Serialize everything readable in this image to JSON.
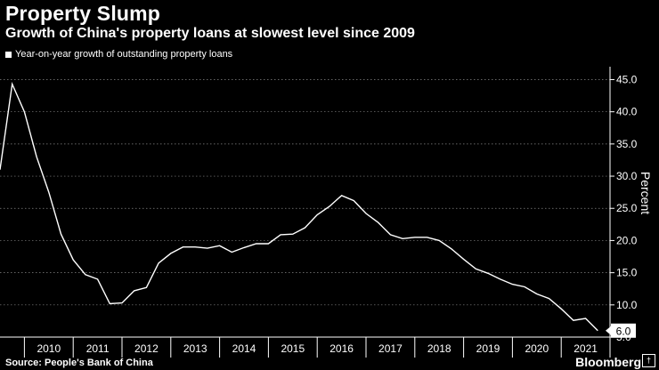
{
  "header": {
    "title": "Property Slump",
    "subtitle": "Growth of China's property loans at slowest level since 2009"
  },
  "footer": {
    "source": "Source: People's Bank of China",
    "brand": "Bloomberg",
    "brand_mark": "†"
  },
  "colors": {
    "background": "#000000",
    "line": "#ffffff",
    "grid": "#888888"
  },
  "chart_data": {
    "type": "line",
    "title": "Property Slump",
    "subtitle": "Growth of China's property loans at slowest level since 2009",
    "ylabel": "Percent",
    "ylim": [
      5.0,
      47.0
    ],
    "yticks": [
      5.0,
      10.0,
      15.0,
      20.0,
      25.0,
      30.0,
      35.0,
      40.0,
      45.0
    ],
    "xlim": [
      2009.5,
      2022.0
    ],
    "xticks": [
      "2010",
      "2011",
      "2012",
      "2013",
      "2014",
      "2015",
      "2016",
      "2017",
      "2018",
      "2019",
      "2020",
      "2021"
    ],
    "grid": true,
    "legend_position": "top-left",
    "last_value_label": "6.0",
    "series": [
      {
        "name": "Year-on-year growth of outstanding property loans",
        "x": [
          2009.5,
          2009.75,
          2010.0,
          2010.25,
          2010.5,
          2010.75,
          2011.0,
          2011.25,
          2011.5,
          2011.75,
          2012.0,
          2012.25,
          2012.5,
          2012.75,
          2013.0,
          2013.25,
          2013.5,
          2013.75,
          2014.0,
          2014.25,
          2014.5,
          2014.75,
          2015.0,
          2015.25,
          2015.5,
          2015.75,
          2016.0,
          2016.25,
          2016.5,
          2016.75,
          2017.0,
          2017.25,
          2017.5,
          2017.75,
          2018.0,
          2018.25,
          2018.5,
          2018.75,
          2019.0,
          2019.25,
          2019.5,
          2019.75,
          2020.0,
          2020.25,
          2020.5,
          2020.75,
          2021.0,
          2021.25,
          2021.5,
          2021.75
        ],
        "values": [
          31.0,
          44.3,
          40.0,
          33.0,
          27.5,
          21.0,
          17.0,
          14.7,
          14.0,
          10.2,
          10.3,
          12.2,
          12.7,
          16.5,
          18.0,
          19.0,
          19.0,
          18.8,
          19.2,
          18.2,
          18.9,
          19.5,
          19.5,
          20.9,
          21.0,
          22.0,
          24.0,
          25.3,
          27.0,
          26.2,
          24.2,
          22.8,
          20.9,
          20.3,
          20.5,
          20.5,
          20.0,
          18.7,
          17.1,
          15.6,
          14.9,
          14.0,
          13.2,
          12.8,
          11.7,
          11.0,
          9.4,
          7.6,
          7.9,
          6.0
        ]
      }
    ]
  }
}
